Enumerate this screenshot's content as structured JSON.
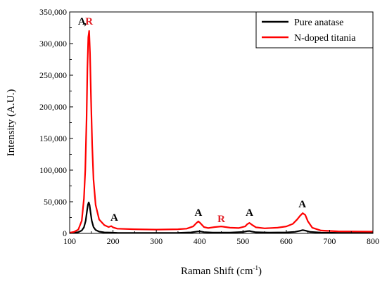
{
  "chart_data": {
    "type": "line",
    "xlabel": "Raman Shift (cm",
    "xlabel_sup": "-1",
    "xlabel_suffix": ")",
    "ylabel": "Intensity (A.U.)",
    "xlim": [
      100,
      800
    ],
    "ylim": [
      0,
      350000
    ],
    "xticks": [
      "100",
      "200",
      "300",
      "400",
      "500",
      "600",
      "700",
      "800"
    ],
    "yticks": [
      "0",
      "50,000",
      "100,000",
      "150,000",
      "200,000",
      "250,000",
      "300,000",
      "350,000"
    ],
    "grid": false,
    "legend_position": "top-right",
    "series": [
      {
        "name": "Pure anatase",
        "color": "#000000",
        "x": [
          100,
          110,
          120,
          128,
          133,
          137,
          140,
          142,
          144,
          146,
          148,
          151,
          155,
          160,
          168,
          180,
          195,
          210,
          250,
          300,
          350,
          380,
          395,
          400,
          410,
          430,
          470,
          500,
          510,
          515,
          520,
          530,
          560,
          600,
          620,
          630,
          638,
          645,
          655,
          680,
          720,
          800
        ],
        "y": [
          600,
          900,
          2000,
          4500,
          9500,
          20000,
          35000,
          45000,
          49000,
          45000,
          34000,
          20000,
          10000,
          5500,
          2800,
          1500,
          1200,
          900,
          800,
          800,
          900,
          1500,
          3000,
          3200,
          2000,
          1300,
          1300,
          2200,
          3600,
          3800,
          3000,
          1800,
          1300,
          1600,
          2500,
          3800,
          5200,
          4200,
          2300,
          1200,
          900,
          800
        ]
      },
      {
        "name": "N-doped titania",
        "color": "#ff0000",
        "x": [
          100,
          110,
          120,
          128,
          133,
          136,
          139,
          141,
          143,
          145,
          147,
          149,
          152,
          155,
          160,
          168,
          180,
          190,
          196,
          200,
          210,
          250,
          300,
          350,
          370,
          385,
          392,
          397,
          402,
          410,
          420,
          435,
          450,
          470,
          490,
          505,
          510,
          515,
          520,
          530,
          550,
          580,
          600,
          615,
          625,
          632,
          638,
          644,
          650,
          660,
          680,
          720,
          800
        ],
        "y": [
          1000,
          2500,
          6000,
          20000,
          55000,
          100000,
          180000,
          260000,
          310000,
          320000,
          285000,
          220000,
          140000,
          85000,
          45000,
          22000,
          13000,
          10000,
          11500,
          9500,
          7500,
          6500,
          6000,
          6500,
          7500,
          11000,
          16000,
          19000,
          16000,
          10000,
          8500,
          10000,
          11000,
          9000,
          8500,
          11000,
          14500,
          16500,
          14000,
          9500,
          8000,
          9000,
          11000,
          15000,
          22000,
          28000,
          32000,
          29000,
          19000,
          9000,
          4500,
          3200,
          2800
        ]
      }
    ],
    "annotations": [
      {
        "text": "A",
        "color": "#000000",
        "x": 128,
        "y": 330000
      },
      {
        "text": ",",
        "color": "#000000",
        "x": 136,
        "y": 330000
      },
      {
        "text": "R",
        "color": "#e21f26",
        "x": 145,
        "y": 330000
      },
      {
        "text": "A",
        "color": "#000000",
        "x": 203,
        "y": 20000
      },
      {
        "text": "A",
        "color": "#000000",
        "x": 397,
        "y": 28000
      },
      {
        "text": "R",
        "color": "#e21f26",
        "x": 450,
        "y": 18000
      },
      {
        "text": "A",
        "color": "#000000",
        "x": 515,
        "y": 28000
      },
      {
        "text": "A",
        "color": "#000000",
        "x": 637,
        "y": 41000
      }
    ]
  }
}
